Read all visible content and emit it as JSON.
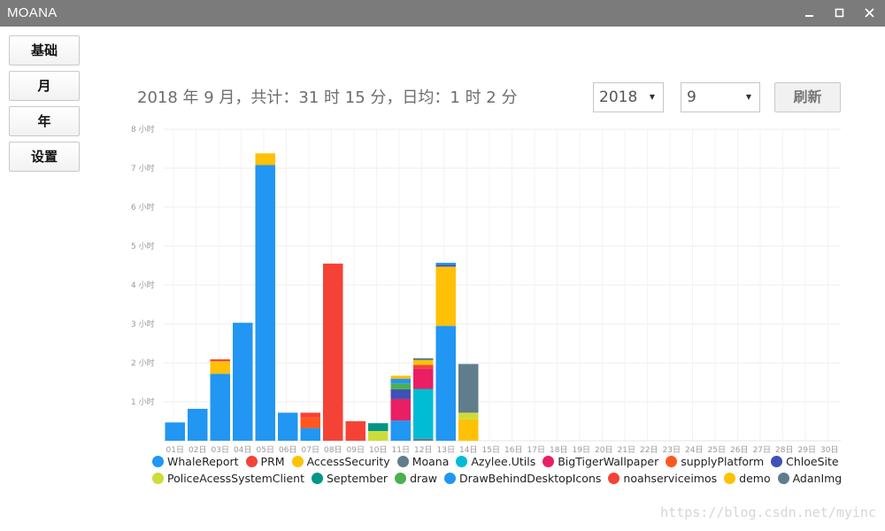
{
  "window": {
    "title": "MOANA",
    "minimize_icon": "minimize-icon",
    "maximize_icon": "maximize-icon",
    "close_icon": "close-icon"
  },
  "sidebar": {
    "items": [
      {
        "label": "基础"
      },
      {
        "label": "月"
      },
      {
        "label": "年"
      },
      {
        "label": "设置"
      }
    ]
  },
  "header": {
    "summary": "2018 年 9 月，共计：31 时 15 分，日均：1 时 2 分",
    "year_select": "2018",
    "month_select": "9",
    "refresh_label": "刷新"
  },
  "watermark": "https://blog.csdn.net/myinc",
  "chart_data": {
    "type": "bar",
    "stacked": true,
    "ylim": [
      0,
      8
    ],
    "y_ticks": [
      "1 小时",
      "2 小时",
      "3 小时",
      "4 小时",
      "5 小时",
      "6 小时",
      "7 小时",
      "8 小时"
    ],
    "categories": [
      "01日",
      "02日",
      "03日",
      "04日",
      "05日",
      "06日",
      "07日",
      "08日",
      "09日",
      "10日",
      "11日",
      "12日",
      "13日",
      "14日",
      "15日",
      "16日",
      "17日",
      "18日",
      "19日",
      "20日",
      "21日",
      "22日",
      "23日",
      "24日",
      "25日",
      "26日",
      "27日",
      "28日",
      "29日",
      "30日"
    ],
    "grid": true,
    "legend_position": "bottom",
    "series": [
      {
        "name": "WhaleReport",
        "color": "#2196f3",
        "values": [
          0.47,
          0.82,
          1.72,
          3.03,
          7.08,
          0.72,
          0.32,
          0,
          0,
          0,
          0.52,
          0,
          2.95,
          0,
          0,
          0,
          0,
          0,
          0,
          0,
          0,
          0,
          0,
          0,
          0,
          0,
          0,
          0,
          0,
          0
        ]
      },
      {
        "name": "PRM",
        "color": "#f44336",
        "values": [
          0,
          0,
          0,
          0,
          0,
          0,
          0,
          4.55,
          0.5,
          0,
          0,
          0,
          0,
          0,
          0,
          0,
          0,
          0,
          0,
          0,
          0,
          0,
          0,
          0,
          0,
          0,
          0,
          0,
          0,
          0
        ]
      },
      {
        "name": "AccessSecurity",
        "color": "#ffc107",
        "values": [
          0,
          0,
          0.32,
          0,
          0,
          0,
          0,
          0,
          0,
          0,
          0,
          0,
          1.52,
          0.55,
          0,
          0,
          0,
          0,
          0,
          0,
          0,
          0,
          0,
          0,
          0,
          0,
          0,
          0,
          0,
          0
        ]
      },
      {
        "name": "Moana",
        "color": "#607d8b",
        "values": [
          0,
          0,
          0,
          0,
          0,
          0,
          0,
          0,
          0,
          0,
          0,
          0.05,
          0,
          0,
          0,
          0,
          0,
          0,
          0,
          0,
          0,
          0,
          0,
          0,
          0,
          0,
          0,
          0,
          0,
          0
        ]
      },
      {
        "name": "Azylee.Utils",
        "color": "#00bcd4",
        "values": [
          0,
          0,
          0,
          0,
          0,
          0,
          0,
          0,
          0,
          0,
          0,
          1.28,
          0,
          0,
          0,
          0,
          0,
          0,
          0,
          0,
          0,
          0,
          0,
          0,
          0,
          0,
          0,
          0,
          0,
          0
        ]
      },
      {
        "name": "BigTigerWallpaper",
        "color": "#e91e63",
        "values": [
          0,
          0,
          0,
          0,
          0,
          0,
          0,
          0,
          0,
          0,
          0.55,
          0.52,
          0,
          0,
          0,
          0,
          0,
          0,
          0,
          0,
          0,
          0,
          0,
          0,
          0,
          0,
          0,
          0,
          0,
          0
        ]
      },
      {
        "name": "supplyPlatform",
        "color": "#ff5722",
        "values": [
          0,
          0,
          0,
          0,
          0,
          0,
          0.28,
          0,
          0,
          0,
          0,
          0,
          0,
          0,
          0,
          0,
          0,
          0,
          0,
          0,
          0,
          0,
          0,
          0,
          0,
          0,
          0,
          0,
          0,
          0
        ]
      },
      {
        "name": "ChloeSite",
        "color": "#3f51b5",
        "values": [
          0,
          0,
          0,
          0,
          0,
          0,
          0,
          0,
          0,
          0,
          0.25,
          0,
          0.05,
          0,
          0,
          0,
          0,
          0,
          0,
          0,
          0,
          0,
          0,
          0,
          0,
          0,
          0,
          0,
          0,
          0
        ]
      },
      {
        "name": "PoliceAcessSystemClient",
        "color": "#cddc39",
        "values": [
          0,
          0,
          0,
          0,
          0,
          0,
          0,
          0,
          0,
          0.25,
          0,
          0,
          0,
          0.17,
          0,
          0,
          0,
          0,
          0,
          0,
          0,
          0,
          0,
          0,
          0,
          0,
          0,
          0,
          0,
          0
        ]
      },
      {
        "name": "September",
        "color": "#009688",
        "values": [
          0,
          0,
          0,
          0,
          0,
          0,
          0,
          0,
          0,
          0.2,
          0,
          0,
          0,
          0,
          0,
          0,
          0,
          0,
          0,
          0,
          0,
          0,
          0,
          0,
          0,
          0,
          0,
          0,
          0,
          0
        ]
      },
      {
        "name": "draw",
        "color": "#4caf50",
        "values": [
          0,
          0,
          0,
          0,
          0,
          0,
          0,
          0,
          0,
          0,
          0.15,
          0,
          0,
          0,
          0,
          0,
          0,
          0,
          0,
          0,
          0,
          0,
          0,
          0,
          0,
          0,
          0,
          0,
          0,
          0
        ]
      },
      {
        "name": "DrawBehindDesktopIcons",
        "color": "#2196f3",
        "values": [
          0,
          0,
          0,
          0,
          0,
          0,
          0,
          0,
          0,
          0,
          0.12,
          0,
          0.05,
          0,
          0,
          0,
          0,
          0,
          0,
          0,
          0,
          0,
          0,
          0,
          0,
          0,
          0,
          0,
          0,
          0
        ]
      },
      {
        "name": "noahserviceimos",
        "color": "#f44336",
        "values": [
          0,
          0,
          0.05,
          0,
          0,
          0,
          0.12,
          0,
          0,
          0,
          0,
          0.1,
          0,
          0,
          0,
          0,
          0,
          0,
          0,
          0,
          0,
          0,
          0,
          0,
          0,
          0,
          0,
          0,
          0,
          0
        ]
      },
      {
        "name": "demo",
        "color": "#ffc107",
        "values": [
          0,
          0,
          0,
          0,
          0.3,
          0,
          0,
          0,
          0,
          0,
          0.08,
          0.12,
          0,
          0,
          0,
          0,
          0,
          0,
          0,
          0,
          0,
          0,
          0,
          0,
          0,
          0,
          0,
          0,
          0,
          0
        ]
      },
      {
        "name": "AdanImg",
        "color": "#607d8b",
        "values": [
          0,
          0,
          0,
          0,
          0,
          0,
          0,
          0,
          0,
          0,
          0,
          0.05,
          0,
          1.25,
          0,
          0,
          0,
          0,
          0,
          0,
          0,
          0,
          0,
          0,
          0,
          0,
          0,
          0,
          0,
          0
        ]
      }
    ]
  }
}
